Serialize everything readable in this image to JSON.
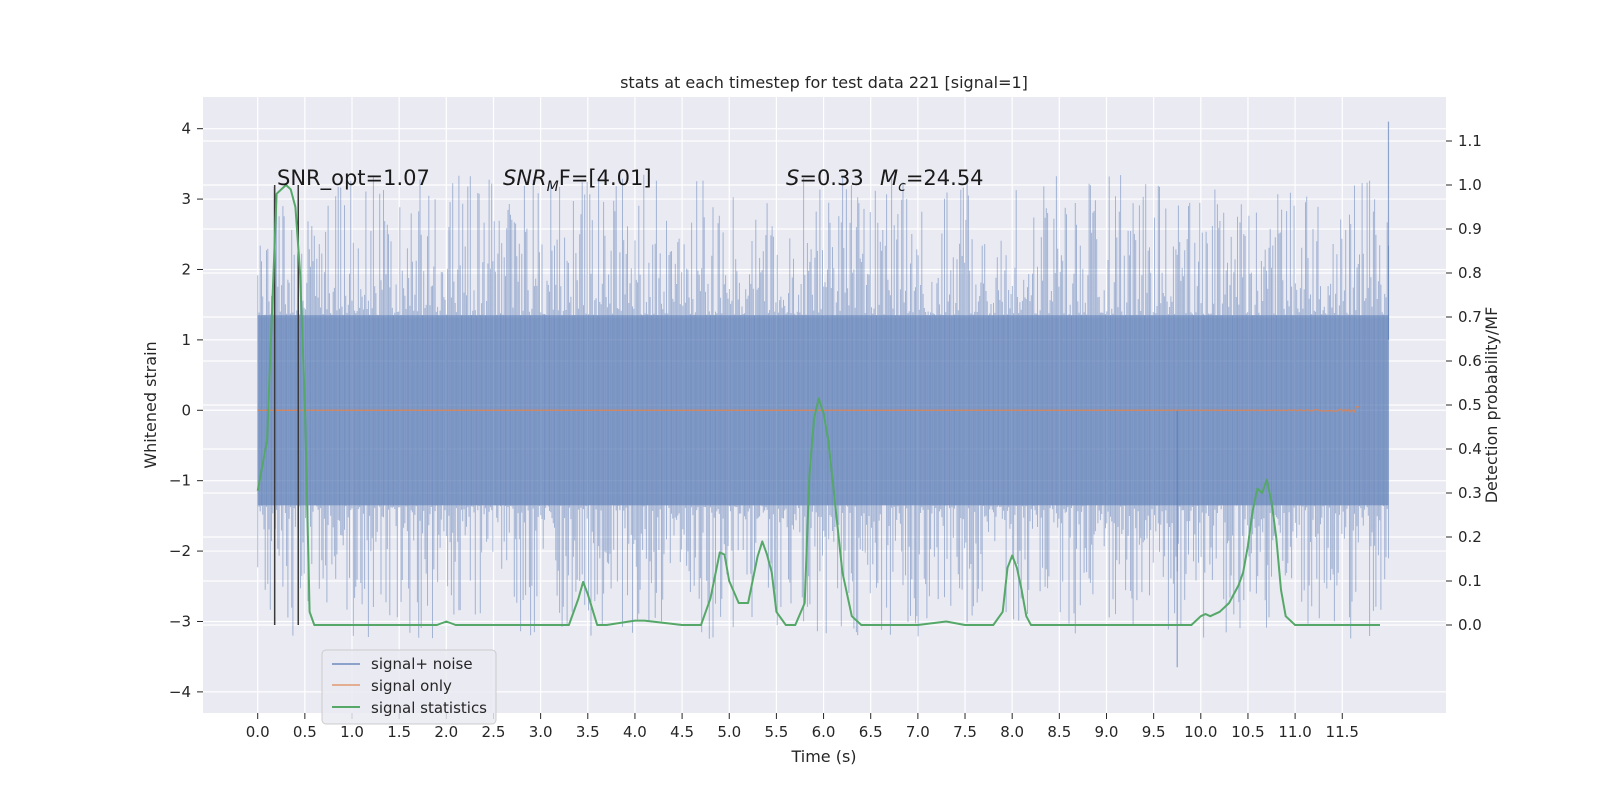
{
  "chart_data": {
    "type": "line",
    "title": "stats at each timestep for test data 221 [signal=1]",
    "xlabel": "Time (s)",
    "ylabel_left": "Whitened strain",
    "ylabel_right": "Detection probability/MF",
    "xlim": [
      -0.58,
      12.6
    ],
    "ylim_left": [
      -4.3,
      4.45
    ],
    "ylim_right": [
      -0.2,
      1.2
    ],
    "xticks": [
      "0.0",
      "0.5",
      "1.0",
      "1.5",
      "2.0",
      "2.5",
      "3.0",
      "3.5",
      "4.0",
      "4.5",
      "5.0",
      "5.5",
      "6.0",
      "6.5",
      "7.0",
      "7.5",
      "8.0",
      "8.5",
      "9.0",
      "9.5",
      "10.0",
      "10.5",
      "11.0",
      "11.5"
    ],
    "yticks_left": [
      "4",
      "3",
      "2",
      "1",
      "0",
      "−1",
      "−2",
      "−3",
      "−4"
    ],
    "yticks_right": [
      "1.1",
      "1.0",
      "0.9",
      "0.8",
      "0.7",
      "0.6",
      "0.5",
      "0.4",
      "0.3",
      "0.2",
      "0.1",
      "0.0"
    ],
    "grid": true,
    "legend_position": "lower-left",
    "annotations": {
      "snr_opt": "SNR_opt=1.07",
      "snr_mf_main": "SNR",
      "snr_mf_sub": "M",
      "snr_mf_tail": "F=[4.01]",
      "s_main": "S",
      "s_tail": "=0.33",
      "mc_main": "M",
      "mc_sub": "c",
      "mc_tail": "=24.54"
    },
    "vertical_markers_x": [
      0.18,
      0.43
    ],
    "series": [
      {
        "name": "signal+ noise",
        "color": "#4c72b0",
        "axis": "left",
        "style": "noise band",
        "x_range": [
          0.0,
          11.99
        ],
        "typical_amplitude": [
          -1.35,
          1.35
        ],
        "min": -3.65,
        "max": 4.1
      },
      {
        "name": "signal only",
        "color": "#dd8452",
        "axis": "left",
        "style": "chirp",
        "x_range": [
          0.0,
          11.68
        ],
        "peak_time": 11.65,
        "peak_amplitude": 0.23
      },
      {
        "name": "signal statistics",
        "color": "#55a868",
        "axis": "right",
        "x": [
          0.0,
          0.1,
          0.15,
          0.2,
          0.25,
          0.3,
          0.35,
          0.4,
          0.45,
          0.5,
          0.55,
          0.6,
          0.65,
          0.7,
          1.0,
          1.5,
          1.9,
          2.0,
          2.1,
          2.5,
          3.0,
          3.3,
          3.4,
          3.45,
          3.5,
          3.6,
          3.7,
          4.0,
          4.1,
          4.5,
          4.7,
          4.8,
          4.9,
          4.95,
          5.0,
          5.1,
          5.2,
          5.3,
          5.35,
          5.4,
          5.45,
          5.5,
          5.6,
          5.7,
          5.8,
          5.85,
          5.9,
          5.95,
          6.0,
          6.05,
          6.1,
          6.2,
          6.3,
          6.4,
          6.5,
          6.7,
          7.0,
          7.3,
          7.5,
          7.7,
          7.8,
          7.9,
          7.95,
          8.0,
          8.05,
          8.1,
          8.15,
          8.2,
          8.3,
          8.5,
          9.0,
          9.5,
          9.9,
          10.0,
          10.05,
          10.1,
          10.2,
          10.3,
          10.4,
          10.45,
          10.5,
          10.55,
          10.6,
          10.65,
          10.7,
          10.75,
          10.8,
          10.85,
          10.9,
          11.0,
          11.5,
          11.9
        ],
        "values": [
          0.305,
          0.42,
          0.7,
          0.98,
          0.99,
          1.0,
          0.99,
          0.95,
          0.8,
          0.5,
          0.03,
          0.0,
          0.0,
          0.0,
          0.0,
          0.0,
          0.0,
          0.008,
          0.0,
          0.0,
          0.0,
          0.0,
          0.06,
          0.098,
          0.07,
          0.0,
          0.0,
          0.01,
          0.01,
          0.0,
          0.0,
          0.06,
          0.165,
          0.16,
          0.1,
          0.05,
          0.05,
          0.155,
          0.19,
          0.16,
          0.12,
          0.03,
          0.0,
          0.0,
          0.05,
          0.34,
          0.47,
          0.515,
          0.48,
          0.42,
          0.32,
          0.12,
          0.02,
          0.0,
          0.0,
          0.0,
          0.0,
          0.008,
          0.0,
          0.0,
          0.0,
          0.03,
          0.13,
          0.158,
          0.13,
          0.08,
          0.02,
          0.0,
          0.0,
          0.0,
          0.0,
          0.0,
          0.0,
          0.02,
          0.025,
          0.02,
          0.03,
          0.05,
          0.09,
          0.12,
          0.18,
          0.26,
          0.31,
          0.3,
          0.33,
          0.28,
          0.2,
          0.08,
          0.02,
          0.0,
          0.0,
          0.0
        ]
      }
    ]
  }
}
